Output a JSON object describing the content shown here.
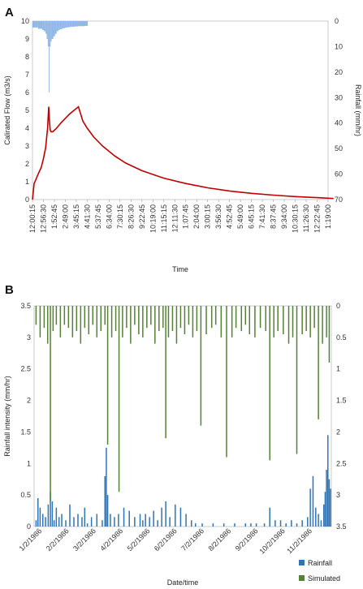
{
  "chart_data": [
    {
      "panel": "A",
      "type": "line",
      "xlabel": "Time",
      "ylabel": "Calirated Flow (m3/s)",
      "y2label": "Rainfall (mm/hr)",
      "ylim": [
        0,
        10
      ],
      "y2lim": [
        0,
        70
      ],
      "y2_inverted": true,
      "yticks": [
        "0",
        "1",
        "2",
        "3",
        "4",
        "5",
        "6",
        "7",
        "8",
        "9",
        "10"
      ],
      "y2ticks": [
        "0",
        "10",
        "20",
        "30",
        "40",
        "50",
        "60",
        "70"
      ],
      "xticks": [
        "12:00:15",
        "12:56:30",
        "1:52:45",
        "2:49:00",
        "3:45:15",
        "4:41:30",
        "5:37:45",
        "6:34:00",
        "7:30:15",
        "8:26:30",
        "9:22:45",
        "10:19:00",
        "11:15:15",
        "12:11:30",
        "1:07:45",
        "2:04:00",
        "3:00:15",
        "3:56:30",
        "4:52:45",
        "5:49:00",
        "6:45:15",
        "7:41:30",
        "8:37:45",
        "9:34:00",
        "10:30:15",
        "11:26:30",
        "12:22:45",
        "1:19:00"
      ],
      "flow_color": "#c00000",
      "rain_color": "#8fb8e6",
      "flow": {
        "x": [
          0,
          0.15,
          0.3,
          0.5,
          0.8,
          1.0,
          1.2,
          1.38,
          1.48,
          1.55,
          1.62,
          1.7,
          1.85,
          2.2,
          2.6,
          3.0,
          3.4,
          3.8,
          4.2,
          4.6,
          5.0,
          5.3,
          5.6,
          6.0,
          6.4,
          6.8,
          7.5,
          8.5,
          10,
          12,
          14,
          16,
          18,
          20,
          22,
          24,
          26,
          27.5
        ],
        "y": [
          0,
          0.9,
          1.1,
          1.4,
          1.8,
          2.3,
          2.9,
          4.0,
          5.2,
          4.4,
          3.9,
          3.8,
          3.8,
          4.0,
          4.3,
          4.55,
          4.8,
          5.0,
          5.2,
          4.4,
          4.0,
          3.75,
          3.5,
          3.25,
          3.0,
          2.8,
          2.45,
          2.05,
          1.62,
          1.2,
          0.9,
          0.66,
          0.48,
          0.35,
          0.25,
          0.17,
          0.11,
          0.06
        ]
      },
      "rainfall": {
        "x": [
          0,
          0.25,
          0.5,
          0.7,
          0.9,
          1.05,
          1.2,
          1.3,
          1.4,
          1.48,
          1.55,
          1.65,
          1.75,
          1.9,
          2.05,
          2.2,
          2.35,
          2.5,
          2.65,
          2.8,
          2.95,
          3.1,
          3.25,
          3.4,
          3.55,
          3.7,
          3.85,
          4.0,
          4.15,
          4.3,
          4.45,
          4.6,
          4.75,
          4.9
        ],
        "y": [
          2.5,
          2.5,
          3,
          3,
          3.5,
          4,
          5,
          7,
          10,
          28,
          10,
          8,
          7,
          6,
          5,
          4,
          3.5,
          3.2,
          3,
          2.8,
          2.6,
          2.5,
          2.4,
          2.3,
          2.2,
          2.2,
          2.1,
          2.1,
          2.0,
          2.0,
          2.0,
          2.0,
          1.9,
          1.9
        ]
      }
    },
    {
      "panel": "B",
      "type": "bar",
      "xlabel": "Date/time",
      "ylabel": "Rainfall  intensity (mm/hr)",
      "ylim": [
        0,
        3.5
      ],
      "y2lim": [
        0,
        3.5
      ],
      "y2_inverted": true,
      "yticks": [
        "0",
        "0.5",
        "1",
        "1.5",
        "2",
        "2.5",
        "3",
        "3.5"
      ],
      "y2ticks": [
        "0",
        "0.5",
        "1",
        "1.5",
        "2",
        "2.5",
        "3",
        "3.5"
      ],
      "xticks": [
        "1/2/1986",
        "2/2/1986",
        "3/2/1986",
        "4/2/1986",
        "5/2/1986",
        "6/2/1986",
        "7/2/1986",
        "8/2/1986",
        "9/2/1986",
        "10/2/1986",
        "11/2/1986"
      ],
      "series": [
        {
          "name": "Rainfall",
          "color": "#2e75b6",
          "x": [
            0.05,
            0.12,
            0.2,
            0.3,
            0.4,
            0.5,
            0.58,
            0.65,
            0.72,
            0.8,
            0.9,
            1.0,
            1.15,
            1.3,
            1.45,
            1.6,
            1.75,
            1.85,
            1.95,
            2.1,
            2.3,
            2.5,
            2.6,
            2.65,
            2.7,
            2.8,
            2.95,
            3.1,
            3.3,
            3.5,
            3.7,
            3.9,
            4.0,
            4.1,
            4.25,
            4.4,
            4.55,
            4.7,
            4.85,
            5.0,
            5.2,
            5.4,
            5.6,
            5.8,
            5.95,
            6.2,
            6.6,
            7.0,
            7.4,
            7.8,
            8.0,
            8.2,
            8.5,
            8.7,
            8.9,
            9.1,
            9.3,
            9.5,
            9.7,
            9.9,
            10.1,
            10.2,
            10.3,
            10.4,
            10.5,
            10.6,
            10.7,
            10.75,
            10.8,
            10.85,
            10.9,
            10.95
          ],
          "y": [
            0.1,
            0.45,
            0.3,
            0.2,
            0.15,
            0.35,
            0.55,
            0.4,
            0.1,
            0.3,
            0.15,
            0.2,
            0.1,
            0.35,
            0.15,
            0.2,
            0.15,
            0.3,
            0.05,
            0.15,
            0.2,
            0.1,
            0.8,
            1.25,
            0.5,
            0.2,
            0.15,
            0.2,
            0.3,
            0.25,
            0.15,
            0.2,
            0.1,
            0.2,
            0.15,
            0.25,
            0.1,
            0.3,
            0.4,
            0.15,
            0.35,
            0.3,
            0.2,
            0.1,
            0.05,
            0.05,
            0.05,
            0.05,
            0.05,
            0.05,
            0.05,
            0.05,
            0.05,
            0.3,
            0.1,
            0.1,
            0.05,
            0.1,
            0.05,
            0.1,
            0.15,
            0.6,
            0.8,
            0.3,
            0.2,
            0.1,
            0.35,
            0.55,
            0.9,
            1.45,
            0.75,
            0.6
          ]
        },
        {
          "name": "Simulated",
          "color": "#548235",
          "x": [
            0.05,
            0.2,
            0.35,
            0.48,
            0.58,
            0.68,
            0.8,
            0.95,
            1.1,
            1.25,
            1.4,
            1.55,
            1.7,
            1.85,
            2.0,
            2.15,
            2.3,
            2.45,
            2.6,
            2.7,
            2.85,
            3.0,
            3.12,
            3.25,
            3.4,
            3.55,
            3.7,
            3.85,
            4.0,
            4.15,
            4.3,
            4.45,
            4.6,
            4.75,
            4.85,
            4.95,
            5.1,
            5.25,
            5.4,
            5.55,
            5.7,
            5.85,
            6.0,
            6.15,
            6.35,
            6.55,
            6.7,
            6.9,
            7.1,
            7.3,
            7.45,
            7.65,
            7.8,
            7.95,
            8.15,
            8.35,
            8.55,
            8.7,
            8.85,
            9.0,
            9.2,
            9.4,
            9.55,
            9.7,
            9.9,
            10.05,
            10.2,
            10.35,
            10.5,
            10.65,
            10.8,
            10.9
          ],
          "y": [
            0.3,
            0.5,
            0.35,
            0.6,
            3.1,
            0.4,
            0.3,
            0.5,
            0.3,
            0.35,
            0.5,
            0.4,
            0.6,
            0.35,
            0.45,
            0.3,
            0.5,
            0.4,
            0.3,
            2.2,
            0.5,
            0.4,
            2.95,
            0.5,
            0.35,
            0.6,
            0.3,
            0.45,
            0.5,
            0.35,
            0.3,
            0.6,
            0.4,
            0.35,
            2.1,
            0.5,
            0.4,
            0.6,
            0.35,
            0.45,
            0.3,
            0.5,
            0.4,
            1.9,
            0.45,
            0.35,
            0.3,
            0.5,
            2.4,
            0.5,
            0.35,
            0.4,
            0.3,
            0.45,
            0.5,
            0.35,
            0.4,
            2.45,
            0.5,
            0.4,
            0.45,
            0.6,
            0.5,
            2.35,
            0.45,
            0.4,
            0.5,
            0.35,
            1.8,
            0.6,
            0.5,
            0.9
          ]
        }
      ],
      "legend_position": "bottom-right"
    }
  ]
}
